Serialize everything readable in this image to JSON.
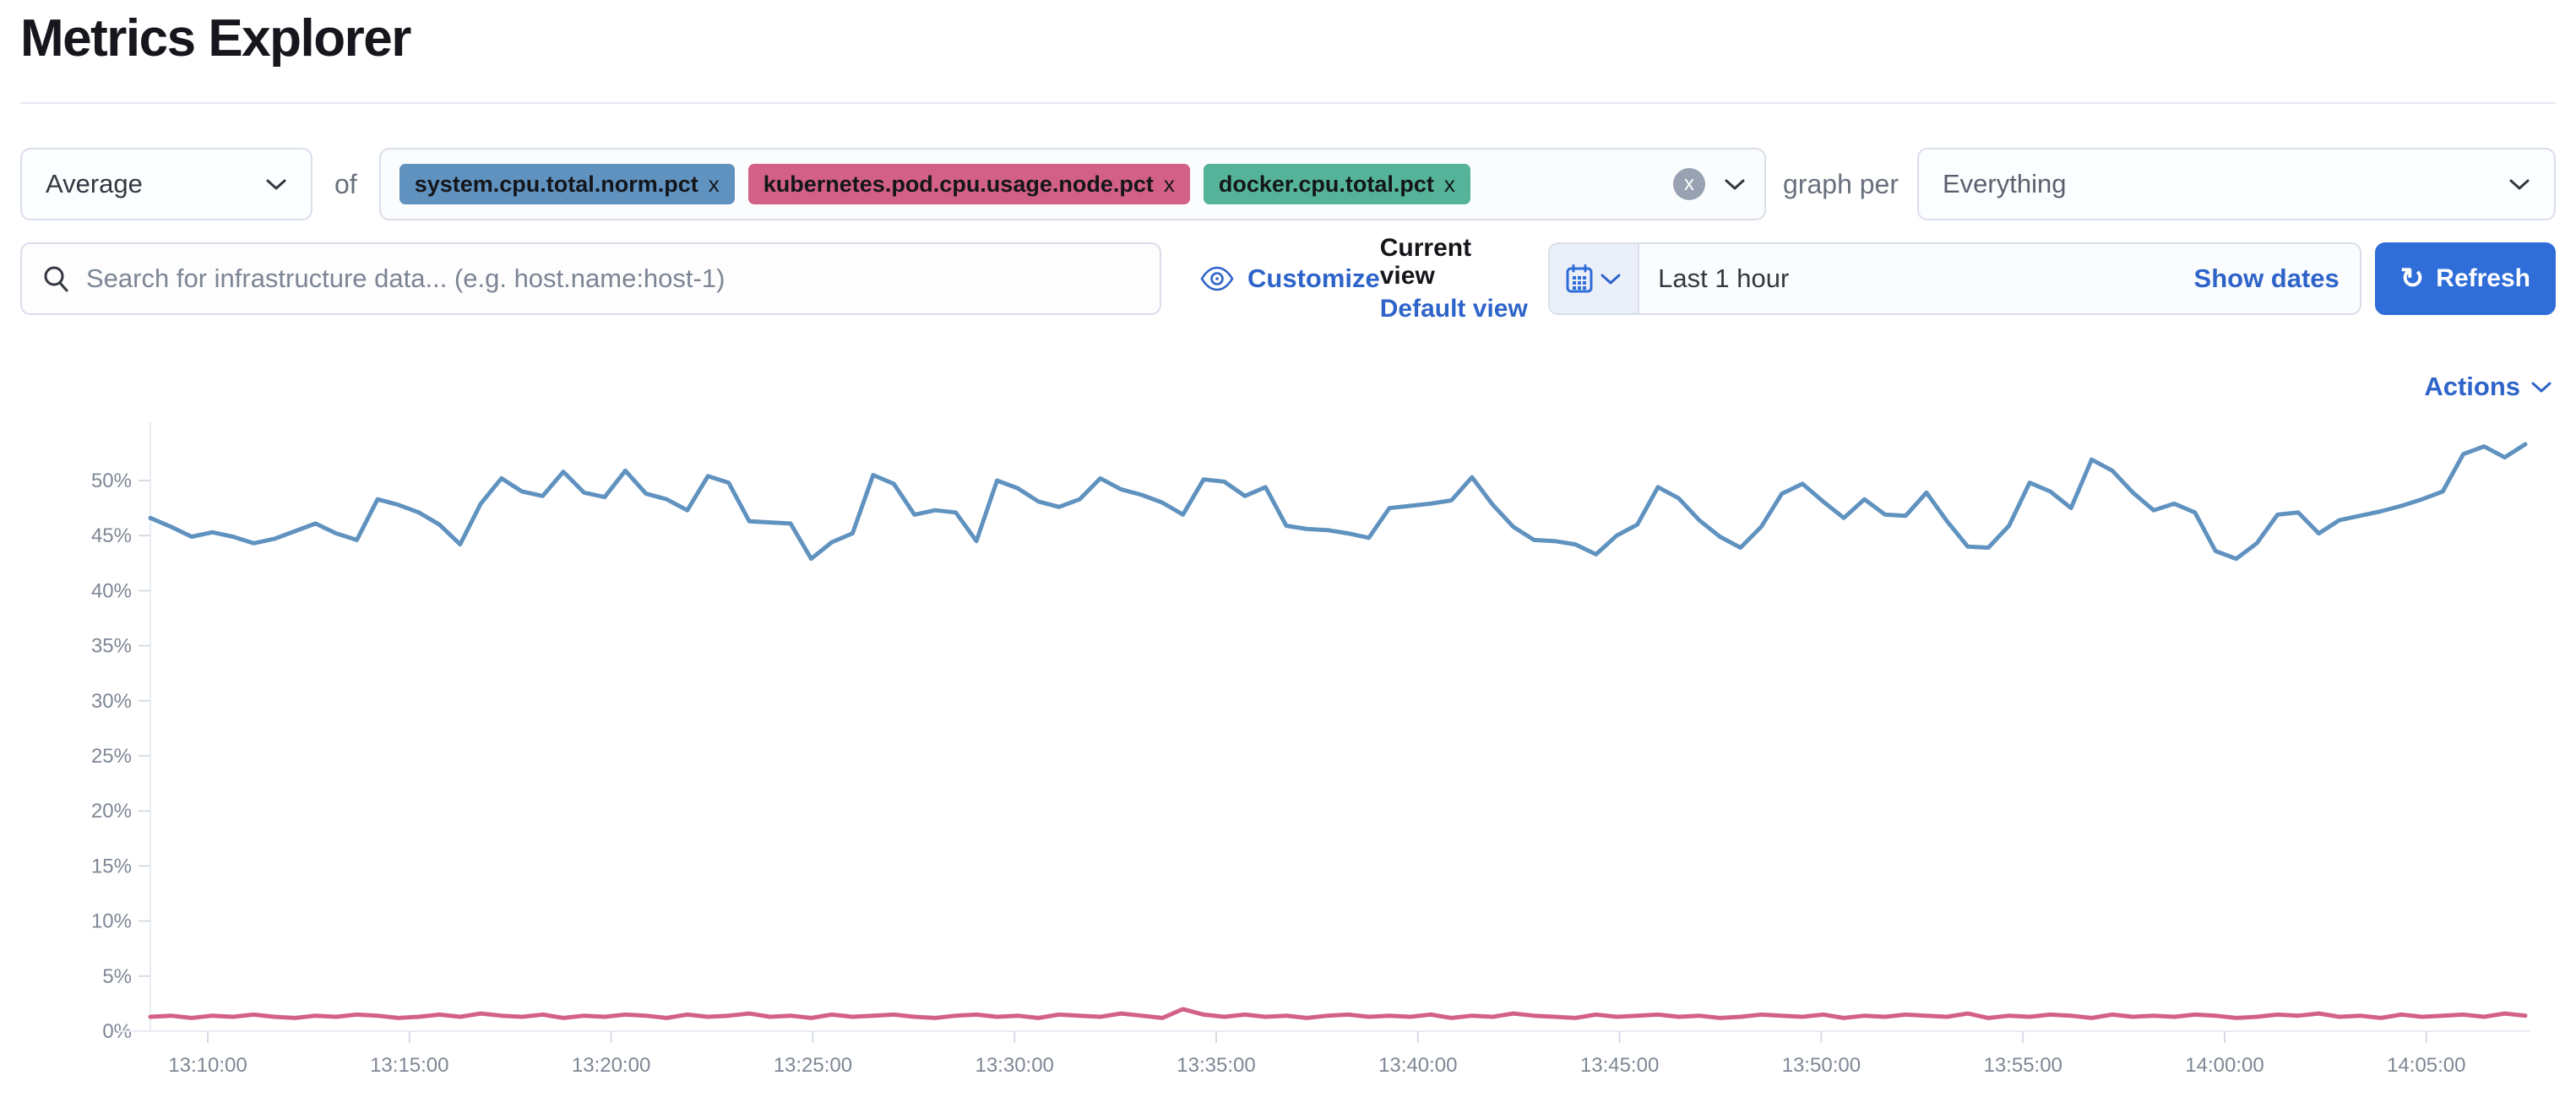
{
  "page": {
    "title": "Metrics Explorer"
  },
  "toolbar": {
    "aggregation_value": "Average",
    "of_label": "of",
    "metrics": [
      {
        "label": "system.cpu.total.norm.pct",
        "color": "#6092C0",
        "remove_icon": "x"
      },
      {
        "label": "kubernetes.pod.cpu.usage.node.pct",
        "color": "#D36086",
        "remove_icon": "x"
      },
      {
        "label": "docker.cpu.total.pct",
        "color": "#54B399",
        "remove_icon": "x"
      }
    ],
    "clear_all_icon": "x",
    "graph_per_label": "graph per",
    "group_by_value": "Everything"
  },
  "search": {
    "placeholder": "Search for infrastructure data... (e.g. host.name:host-1)"
  },
  "view_controls": {
    "customize_label": "Customize",
    "current_view_label": "Current view",
    "view_name": "Default view"
  },
  "time_picker": {
    "range_label": "Last 1 hour",
    "show_dates_label": "Show dates",
    "refresh_label": "Refresh",
    "refresh_icon": "↻"
  },
  "actions": {
    "label": "Actions"
  },
  "colors": {
    "link_blue": "#2e64c9",
    "primary_button": "#2f6dd8",
    "series_blue": "#6092C0",
    "series_pink": "#D36086",
    "badge_green": "#54B399"
  },
  "chart_data": {
    "type": "line",
    "title": "",
    "xlabel": "",
    "ylabel": "",
    "unit": "%",
    "grid": false,
    "legend": "none",
    "ylim": [
      0,
      56
    ],
    "y_tick_step": 5,
    "y_tick_labels": [
      "0%",
      "5%",
      "10%",
      "15%",
      "20%",
      "25%",
      "30%",
      "35%",
      "40%",
      "45%",
      "50%"
    ],
    "x_tick_labels": [
      "13:10:00",
      "13:15:00",
      "13:20:00",
      "13:25:00",
      "13:30:00",
      "13:35:00",
      "13:40:00",
      "13:45:00",
      "13:50:00",
      "13:55:00",
      "14:00:00",
      "14:05:00"
    ],
    "x_start": "13:08:30",
    "x_interval_seconds": 30,
    "series": [
      {
        "name": "system.cpu.total.norm.pct (Average)",
        "color": "#6092C0",
        "values": [
          46.6,
          45.8,
          44.9,
          45.3,
          44.9,
          44.3,
          44.7,
          45.4,
          46.1,
          45.2,
          44.6,
          48.3,
          47.8,
          47.1,
          46.0,
          44.2,
          47.9,
          50.2,
          49.0,
          48.6,
          50.8,
          48.9,
          48.5,
          50.9,
          48.8,
          48.3,
          47.3,
          50.4,
          49.8,
          46.3,
          46.2,
          46.1,
          42.9,
          44.4,
          45.2,
          50.5,
          49.7,
          46.9,
          47.3,
          47.1,
          44.5,
          50.0,
          49.3,
          48.1,
          47.6,
          48.3,
          50.2,
          49.2,
          48.7,
          48.0,
          46.9,
          50.1,
          49.9,
          48.6,
          49.4,
          45.9,
          45.6,
          45.5,
          45.2,
          44.8,
          47.5,
          47.7,
          47.9,
          48.2,
          50.3,
          47.8,
          45.8,
          44.6,
          44.5,
          44.2,
          43.3,
          45.0,
          46.0,
          49.4,
          48.4,
          46.4,
          44.9,
          43.9,
          45.8,
          48.8,
          49.7,
          48.1,
          46.6,
          48.3,
          46.9,
          46.8,
          48.9,
          46.3,
          44.0,
          43.9,
          45.9,
          49.8,
          49.0,
          47.5,
          51.9,
          50.9,
          48.9,
          47.3,
          47.9,
          47.1,
          43.6,
          42.9,
          44.3,
          46.9,
          47.1,
          45.2,
          46.4,
          46.8,
          47.2,
          47.7,
          48.3,
          49.0,
          52.4,
          53.1,
          52.1,
          53.3
        ]
      },
      {
        "name": "kubernetes.pod.cpu.usage.node.pct (Average)",
        "color": "#D36086",
        "values": [
          1.3,
          1.4,
          1.2,
          1.4,
          1.3,
          1.5,
          1.3,
          1.2,
          1.4,
          1.3,
          1.5,
          1.4,
          1.2,
          1.3,
          1.5,
          1.3,
          1.6,
          1.4,
          1.3,
          1.5,
          1.2,
          1.4,
          1.3,
          1.5,
          1.4,
          1.2,
          1.5,
          1.3,
          1.4,
          1.6,
          1.3,
          1.4,
          1.2,
          1.5,
          1.3,
          1.4,
          1.5,
          1.3,
          1.2,
          1.4,
          1.5,
          1.3,
          1.4,
          1.2,
          1.5,
          1.4,
          1.3,
          1.6,
          1.4,
          1.2,
          2.0,
          1.5,
          1.3,
          1.5,
          1.3,
          1.4,
          1.2,
          1.4,
          1.5,
          1.3,
          1.4,
          1.3,
          1.5,
          1.2,
          1.4,
          1.3,
          1.6,
          1.4,
          1.3,
          1.2,
          1.5,
          1.3,
          1.4,
          1.5,
          1.3,
          1.4,
          1.2,
          1.3,
          1.5,
          1.4,
          1.3,
          1.5,
          1.2,
          1.4,
          1.3,
          1.5,
          1.4,
          1.3,
          1.6,
          1.2,
          1.4,
          1.3,
          1.5,
          1.4,
          1.2,
          1.5,
          1.3,
          1.4,
          1.3,
          1.5,
          1.4,
          1.2,
          1.3,
          1.5,
          1.4,
          1.6,
          1.3,
          1.4,
          1.2,
          1.5,
          1.3,
          1.4,
          1.5,
          1.3,
          1.6,
          1.4
        ]
      }
    ]
  }
}
